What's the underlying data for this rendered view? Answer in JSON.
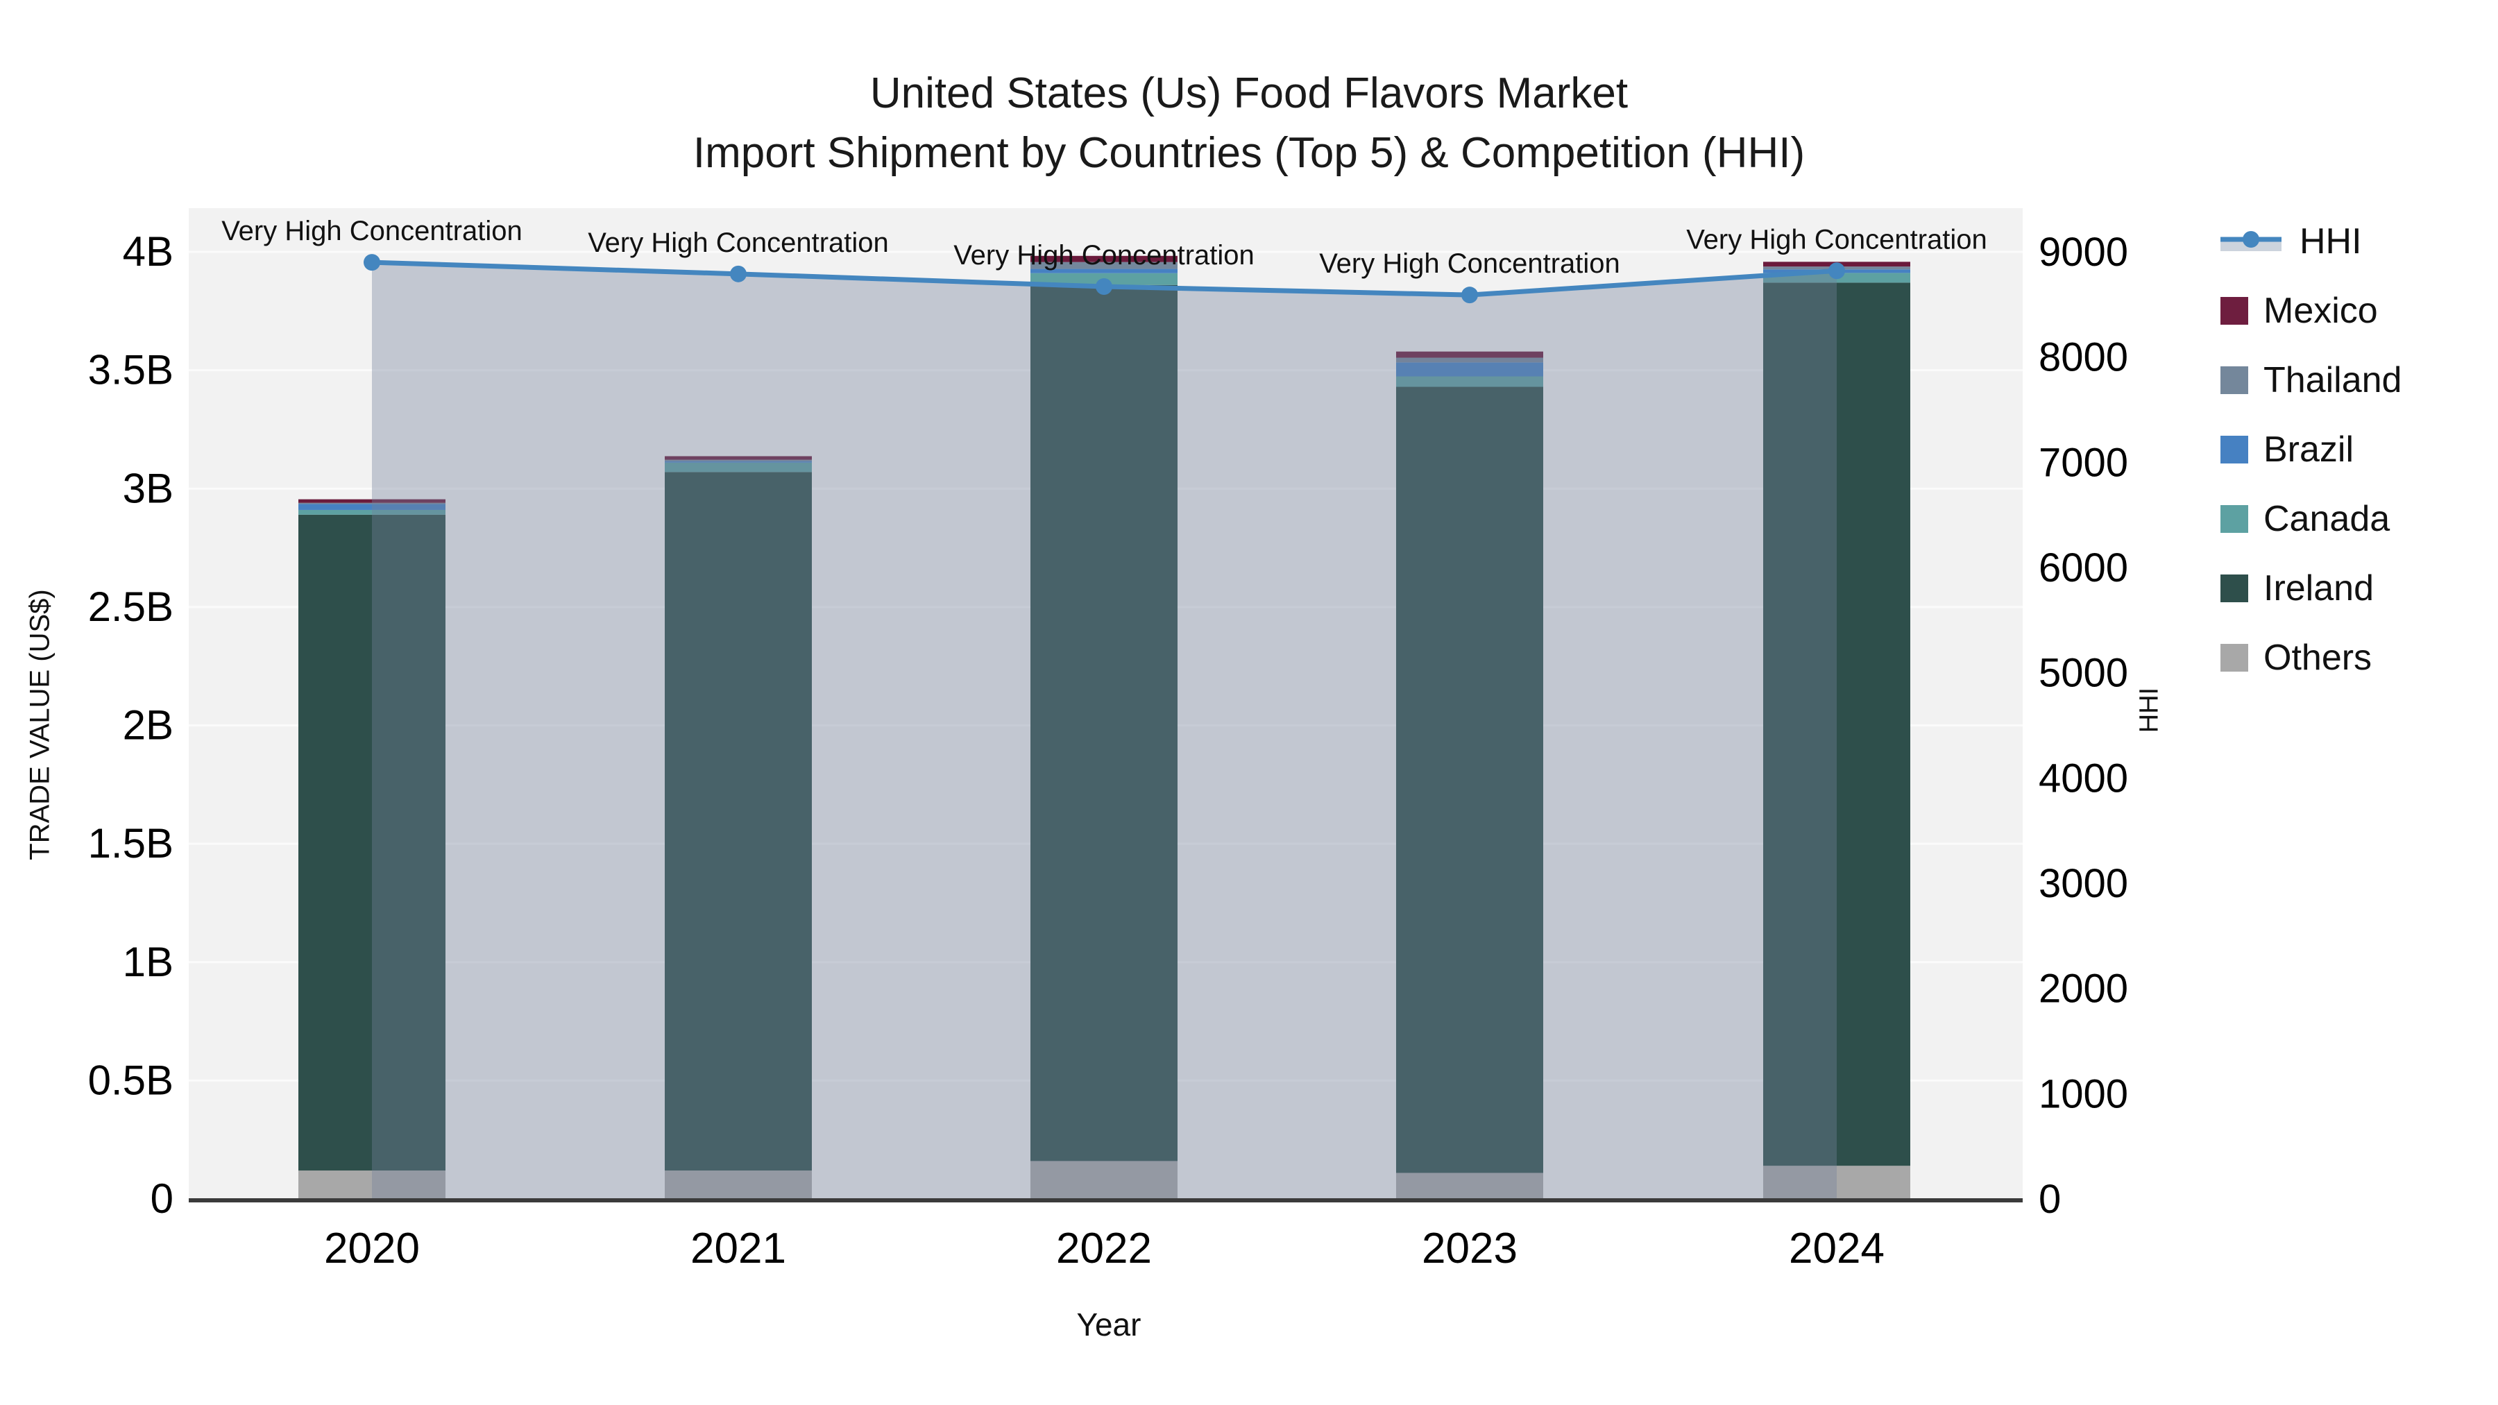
{
  "title": {
    "line1": "United States (Us) Food Flavors Market",
    "line2": "Import Shipment by Countries (Top 5) & Competition (HHI)"
  },
  "axes": {
    "x": {
      "title": "Year",
      "categories": [
        "2020",
        "2021",
        "2022",
        "2023",
        "2024"
      ]
    },
    "y_left": {
      "title": "TRADE VALUE (US$)",
      "ticks": [
        {
          "label": "0",
          "value": 0
        },
        {
          "label": "0.5B",
          "value": 0.5
        },
        {
          "label": "1B",
          "value": 1
        },
        {
          "label": "1.5B",
          "value": 1.5
        },
        {
          "label": "2B",
          "value": 2
        },
        {
          "label": "2.5B",
          "value": 2.5
        },
        {
          "label": "3B",
          "value": 3
        },
        {
          "label": "3.5B",
          "value": 3.5
        },
        {
          "label": "4B",
          "value": 4
        }
      ]
    },
    "y_right": {
      "title": "HHI",
      "ticks": [
        {
          "label": "0",
          "value": 0
        },
        {
          "label": "1000",
          "value": 1000
        },
        {
          "label": "2000",
          "value": 2000
        },
        {
          "label": "3000",
          "value": 3000
        },
        {
          "label": "4000",
          "value": 4000
        },
        {
          "label": "5000",
          "value": 5000
        },
        {
          "label": "6000",
          "value": 6000
        },
        {
          "label": "7000",
          "value": 7000
        },
        {
          "label": "8000",
          "value": 8000
        },
        {
          "label": "9000",
          "value": 9000
        }
      ]
    }
  },
  "legend": [
    {
      "label": "HHI",
      "type": "line",
      "color": "#4486bf"
    },
    {
      "label": "Mexico",
      "type": "swatch",
      "color": "#6e1e3f"
    },
    {
      "label": "Thailand",
      "type": "swatch",
      "color": "#74879b"
    },
    {
      "label": "Brazil",
      "type": "swatch",
      "color": "#4681c2"
    },
    {
      "label": "Canada",
      "type": "swatch",
      "color": "#5da1a2"
    },
    {
      "label": "Ireland",
      "type": "swatch",
      "color": "#2e4f4b"
    },
    {
      "label": "Others",
      "type": "swatch",
      "color": "#a8a8a8"
    }
  ],
  "chart_data": {
    "type": "bar+line",
    "bar_units": "US$ billions (trade value)",
    "categories": [
      "2020",
      "2021",
      "2022",
      "2023",
      "2024"
    ],
    "series": [
      {
        "name": "Others",
        "color": "#a8a8a8",
        "values": [
          0.12,
          0.12,
          0.16,
          0.11,
          0.14
        ]
      },
      {
        "name": "Ireland",
        "color": "#2e4f4b",
        "values": [
          2.77,
          2.95,
          3.7,
          3.32,
          3.73
        ]
      },
      {
        "name": "Canada",
        "color": "#5da1a2",
        "values": [
          0.02,
          0.04,
          0.05,
          0.044,
          0.041
        ]
      },
      {
        "name": "Brazil",
        "color": "#4681c2",
        "values": [
          0.025,
          0.006,
          0.018,
          0.059,
          0.015
        ]
      },
      {
        "name": "Thailand",
        "color": "#74879b",
        "values": [
          0.005,
          0.006,
          0.029,
          0.02,
          0.012
        ]
      },
      {
        "name": "Mexico",
        "color": "#6b1b3c",
        "values": [
          0.015,
          0.015,
          0.026,
          0.026,
          0.02
        ]
      }
    ],
    "bar_totals": [
      2.95,
      3.14,
      3.98,
      3.58,
      3.96
    ],
    "line": {
      "name": "HHI",
      "values": [
        8900,
        8790,
        8670,
        8590,
        8820
      ],
      "color": "#4486bf",
      "area_fill": "rgba(115,130,155,0.38)"
    },
    "annotations": [
      "Very High Concentration",
      "Very High Concentration",
      "Very High Concentration",
      "Very High Concentration",
      "Very High Concentration"
    ],
    "ylim_left": [
      0,
      4
    ],
    "ylim_right": [
      0,
      9000
    ],
    "grid": true,
    "legend_position": "right"
  },
  "colors": {
    "plot_bg": "#f2f2f2",
    "gridline": "#fbfbfb",
    "axis_line": "#3b3b3b",
    "text": "#111111"
  }
}
